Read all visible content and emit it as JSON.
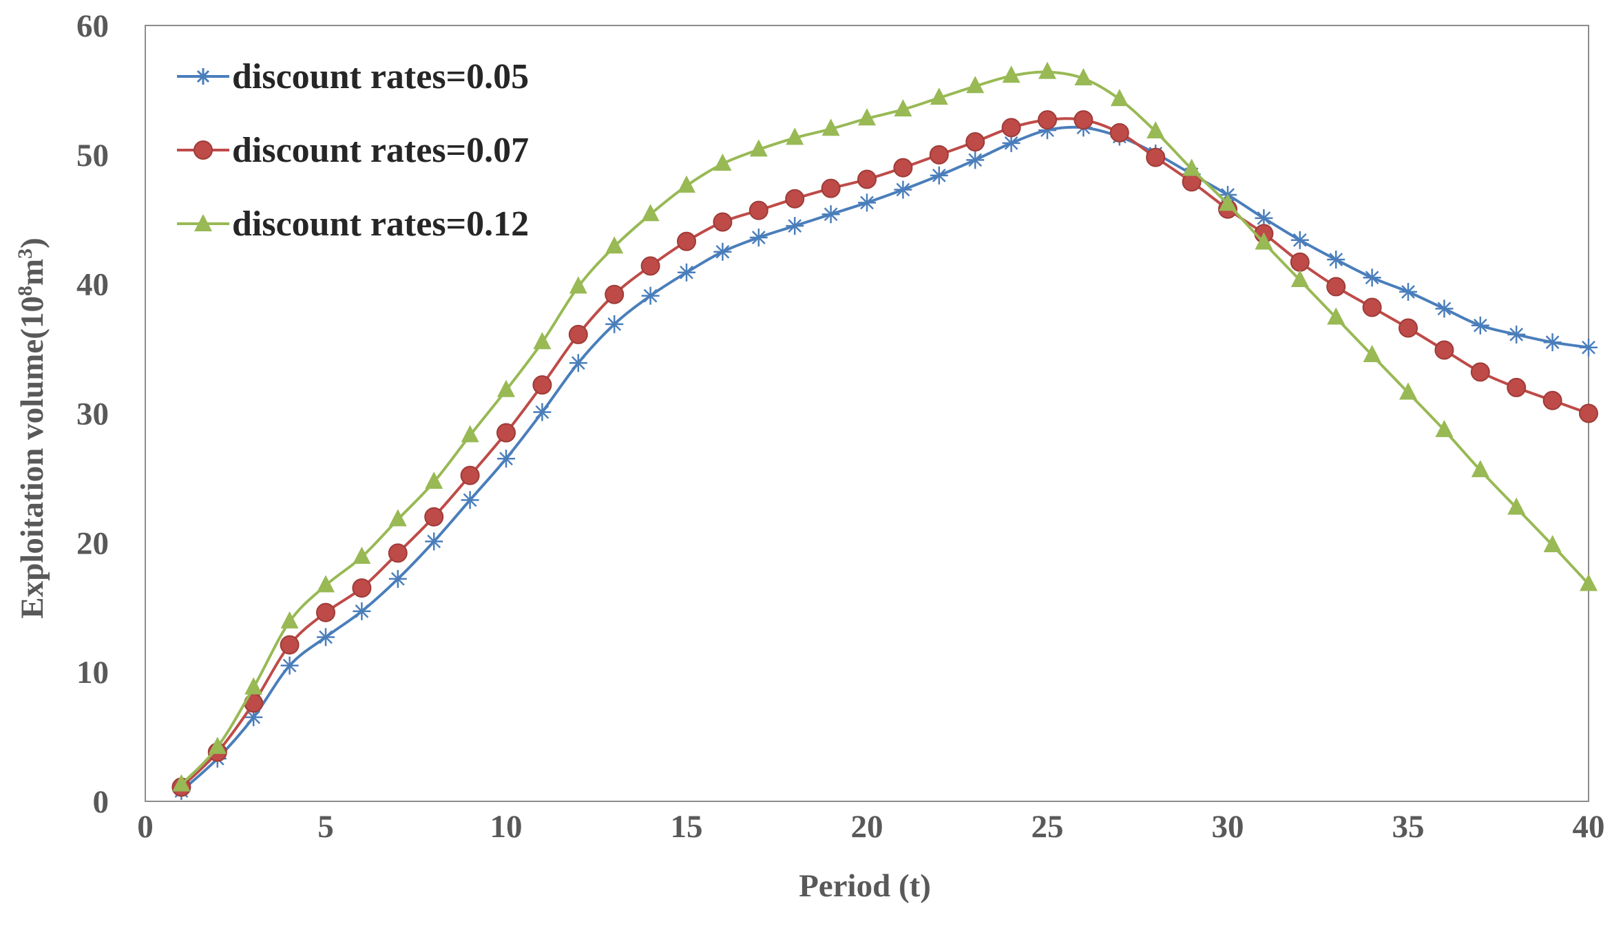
{
  "chart_data": {
    "type": "line",
    "title": "",
    "xlabel": "Period (t)",
    "ylabel_main": "Exploitation volume(10",
    "ylabel_sup1": "8",
    "ylabel_mid": "m",
    "ylabel_sup2": "3",
    "ylabel_end": ")",
    "xlim": [
      0,
      40
    ],
    "ylim": [
      0,
      60
    ],
    "xticks": [
      "0",
      "5",
      "10",
      "15",
      "20",
      "25",
      "30",
      "35",
      "40"
    ],
    "yticks": [
      "0",
      "10",
      "20",
      "30",
      "40",
      "50",
      "60"
    ],
    "xtick_values": [
      0,
      5,
      10,
      15,
      20,
      25,
      30,
      35,
      40
    ],
    "ytick_values": [
      0,
      10,
      20,
      30,
      40,
      50,
      60
    ],
    "legend_position": "top-left",
    "grid": false,
    "x": [
      1,
      2,
      3,
      4,
      5,
      6,
      7,
      8,
      9,
      10,
      11,
      12,
      13,
      14,
      15,
      16,
      17,
      18,
      19,
      20,
      21,
      22,
      23,
      24,
      25,
      26,
      27,
      28,
      29,
      30,
      31,
      32,
      33,
      34,
      35,
      36,
      37,
      38,
      39,
      40
    ],
    "series": [
      {
        "name": "discount rates=0.05",
        "color": "#4a7ebb",
        "marker": "asterisk",
        "values": [
          0.8,
          3.3,
          6.5,
          10.5,
          12.7,
          14.7,
          17.2,
          20.1,
          23.3,
          26.5,
          30.1,
          33.9,
          36.9,
          39.1,
          40.9,
          42.5,
          43.6,
          44.5,
          45.4,
          46.3,
          47.3,
          48.4,
          49.6,
          50.9,
          51.9,
          52.1,
          51.4,
          50.1,
          48.5,
          46.9,
          45.1,
          43.4,
          41.9,
          40.5,
          39.4,
          38.1,
          36.8,
          36.1,
          35.5,
          35.1
        ]
      },
      {
        "name": "discount rates=0.07",
        "color": "#be4b48",
        "marker": "circle",
        "values": [
          1.1,
          3.8,
          7.6,
          12.1,
          14.6,
          16.5,
          19.2,
          22.0,
          25.2,
          28.5,
          32.2,
          36.1,
          39.2,
          41.4,
          43.3,
          44.8,
          45.7,
          46.6,
          47.4,
          48.1,
          49.0,
          50.0,
          51.0,
          52.1,
          52.7,
          52.7,
          51.7,
          49.8,
          47.9,
          45.8,
          43.9,
          41.7,
          39.8,
          38.2,
          36.6,
          34.9,
          33.2,
          32.0,
          31.0,
          30.0
        ]
      },
      {
        "name": "discount rates=0.12",
        "color": "#98b954",
        "marker": "triangle",
        "values": [
          1.3,
          4.2,
          8.8,
          13.9,
          16.7,
          18.9,
          21.8,
          24.7,
          28.3,
          31.8,
          35.5,
          39.8,
          42.9,
          45.4,
          47.6,
          49.3,
          50.4,
          51.3,
          52.0,
          52.8,
          53.5,
          54.4,
          55.3,
          56.1,
          56.4,
          55.9,
          54.3,
          51.8,
          48.9,
          46.2,
          43.2,
          40.3,
          37.4,
          34.5,
          31.6,
          28.7,
          25.6,
          22.7,
          19.8,
          16.8
        ]
      }
    ]
  }
}
